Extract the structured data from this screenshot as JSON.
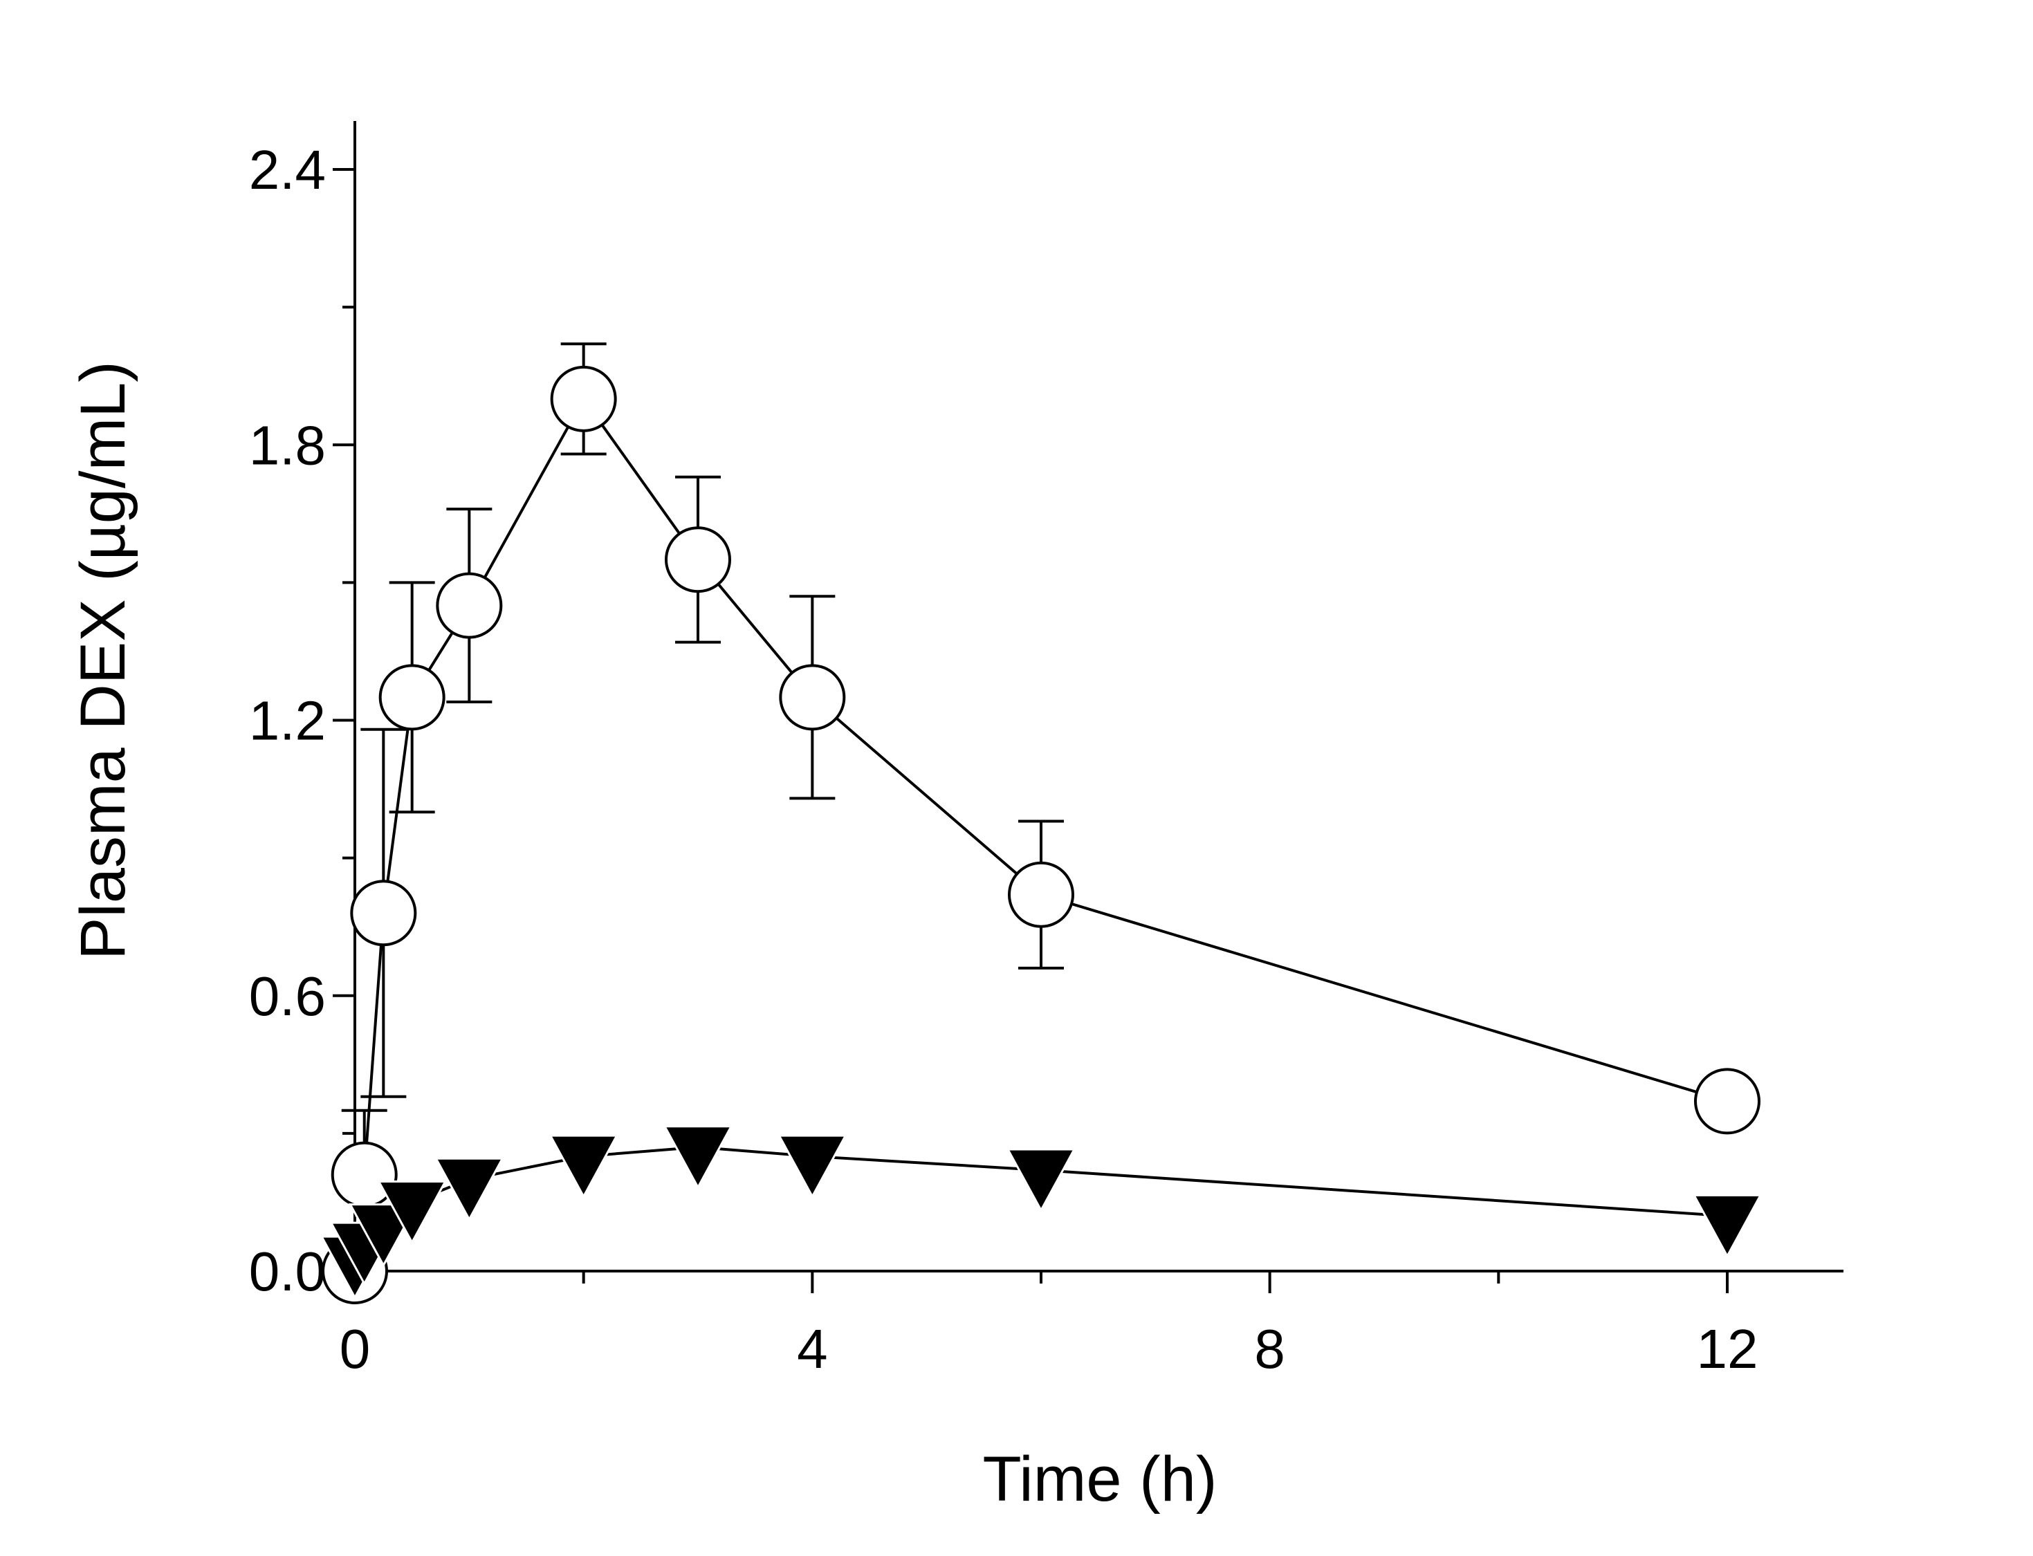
{
  "chart_data": {
    "type": "line",
    "title": "",
    "xlabel": "Time (h)",
    "ylabel": "Plasma DEX (µg/mL)",
    "xlim": [
      0,
      13.1
    ],
    "ylim": [
      0,
      2.5
    ],
    "x_ticks": [
      0,
      4,
      8,
      12
    ],
    "x_tick_labels": [
      "0",
      "4",
      "8",
      "12"
    ],
    "x_minor_ticks": [
      2,
      6,
      10
    ],
    "y_ticks": [
      0.0,
      0.6,
      1.2,
      1.8,
      2.4
    ],
    "y_tick_labels": [
      "0.0",
      "0.6",
      "1.2",
      "1.8",
      "2.4"
    ],
    "y_minor_ticks": [
      0.3,
      0.9,
      1.5,
      2.1
    ],
    "grid": false,
    "legend": "none",
    "series": [
      {
        "marker": "open-circle",
        "color": "#000000",
        "x": [
          0,
          0.083,
          0.25,
          0.5,
          1,
          2,
          3,
          4,
          6,
          12
        ],
        "y": [
          0,
          0.21,
          0.78,
          1.25,
          1.45,
          1.9,
          1.55,
          1.25,
          0.82,
          0.37
        ],
        "err": [
          0,
          0.14,
          0.4,
          0.25,
          0.21,
          0.12,
          0.18,
          0.22,
          0.16,
          0
        ]
      },
      {
        "marker": "filled-triangle-down",
        "color": "#000000",
        "x": [
          0,
          0.083,
          0.25,
          0.5,
          1,
          2,
          3,
          4,
          6,
          12
        ],
        "y": [
          0.03,
          0.06,
          0.1,
          0.15,
          0.2,
          0.25,
          0.27,
          0.25,
          0.22,
          0.12
        ],
        "err": [
          0,
          0,
          0,
          0,
          0,
          0,
          0,
          0,
          0,
          0
        ]
      }
    ]
  }
}
